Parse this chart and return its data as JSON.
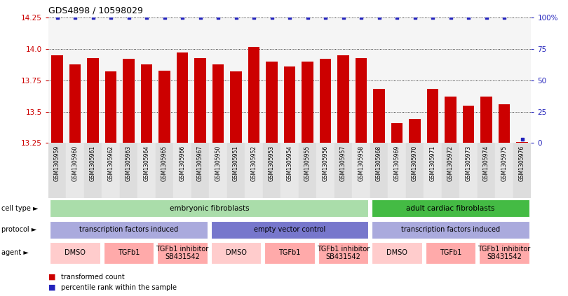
{
  "title": "GDS4898 / 10598029",
  "samples": [
    "GSM1305959",
    "GSM1305960",
    "GSM1305961",
    "GSM1305962",
    "GSM1305963",
    "GSM1305964",
    "GSM1305965",
    "GSM1305966",
    "GSM1305967",
    "GSM1305950",
    "GSM1305951",
    "GSM1305952",
    "GSM1305953",
    "GSM1305954",
    "GSM1305955",
    "GSM1305956",
    "GSM1305957",
    "GSM1305958",
    "GSM1305968",
    "GSM1305969",
    "GSM1305970",
    "GSM1305971",
    "GSM1305972",
    "GSM1305973",
    "GSM1305974",
    "GSM1305975",
    "GSM1305976"
  ],
  "bar_values": [
    13.95,
    13.88,
    13.93,
    13.82,
    13.92,
    13.88,
    13.83,
    13.97,
    13.93,
    13.88,
    13.82,
    14.02,
    13.9,
    13.86,
    13.9,
    13.92,
    13.95,
    13.93,
    13.68,
    13.41,
    13.44,
    13.68,
    13.62,
    13.55,
    13.62,
    13.56,
    13.26
  ],
  "percentile_values": [
    100,
    100,
    100,
    100,
    100,
    100,
    100,
    100,
    100,
    100,
    100,
    100,
    100,
    100,
    100,
    100,
    100,
    100,
    100,
    100,
    100,
    100,
    100,
    100,
    100,
    100,
    3
  ],
  "bar_color": "#cc0000",
  "percentile_color": "#2222bb",
  "ylim_left": [
    13.25,
    14.25
  ],
  "ylim_right": [
    0,
    100
  ],
  "yticks_left": [
    13.25,
    13.5,
    13.75,
    14.0,
    14.25
  ],
  "yticks_right": [
    0,
    25,
    50,
    75,
    100
  ],
  "ytick_labels_right": [
    "0",
    "25",
    "50",
    "75",
    "100%"
  ],
  "grid_lines": [
    13.5,
    13.75,
    14.0,
    14.25
  ],
  "cell_type_groups": [
    {
      "label": "embryonic fibroblasts",
      "start": 0,
      "end": 18,
      "color": "#aaddaa"
    },
    {
      "label": "adult cardiac fibroblasts",
      "start": 18,
      "end": 27,
      "color": "#44bb44"
    }
  ],
  "protocol_groups": [
    {
      "label": "transcription factors induced",
      "start": 0,
      "end": 9,
      "color": "#aaaadd"
    },
    {
      "label": "empty vector control",
      "start": 9,
      "end": 18,
      "color": "#7777cc"
    },
    {
      "label": "transcription factors induced",
      "start": 18,
      "end": 27,
      "color": "#aaaadd"
    }
  ],
  "agent_groups": [
    {
      "label": "DMSO",
      "start": 0,
      "end": 3,
      "color": "#ffcccc"
    },
    {
      "label": "TGFb1",
      "start": 3,
      "end": 6,
      "color": "#ffaaaa"
    },
    {
      "label": "TGFb1 inhibitor\nSB431542",
      "start": 6,
      "end": 9,
      "color": "#ffaaaa"
    },
    {
      "label": "DMSO",
      "start": 9,
      "end": 12,
      "color": "#ffcccc"
    },
    {
      "label": "TGFb1",
      "start": 12,
      "end": 15,
      "color": "#ffaaaa"
    },
    {
      "label": "TGFb1 inhibitor\nSB431542",
      "start": 15,
      "end": 18,
      "color": "#ffaaaa"
    },
    {
      "label": "DMSO",
      "start": 18,
      "end": 21,
      "color": "#ffcccc"
    },
    {
      "label": "TGFb1",
      "start": 21,
      "end": 24,
      "color": "#ffaaaa"
    },
    {
      "label": "TGFb1 inhibitor\nSB431542",
      "start": 24,
      "end": 27,
      "color": "#ffaaaa"
    }
  ],
  "chart_bg": "#f5f5f5",
  "label_area_bg": "#dddddd",
  "fig_bg": "#ffffff"
}
